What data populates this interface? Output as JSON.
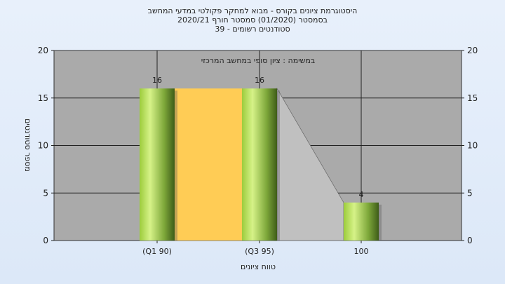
{
  "chart_data": {
    "type": "bar",
    "title_lines": [
      "היסטוגרמת ציונים בקורס - מבוא למחקר פקולטי במדעי המחשב",
      "בסמסטר  (01/2020)  סמסטר חורף  2020/21",
      "סטודנטים רשומים - 39"
    ],
    "subtitle": "במשימה : ציון סופי במחשב המרכזי",
    "xlabel": "טווח ציונים",
    "ylabel": "מספר סטודנטים",
    "categories": [
      "(Q1 90)",
      "(Q3 95)",
      "100"
    ],
    "values": [
      16,
      16,
      4
    ],
    "data_labels": [
      "16",
      "16",
      "4"
    ],
    "ylim": [
      0,
      20
    ],
    "yticks": [
      0,
      5,
      10,
      15,
      20
    ],
    "grid": true,
    "colors": {
      "plot_bg": "#aaaaaa",
      "bar_light": "#c6e870",
      "bar_dark": "#4a6e1e",
      "iqr_band": "#ffcc55",
      "trend_fill": "#c0c0c0"
    }
  }
}
